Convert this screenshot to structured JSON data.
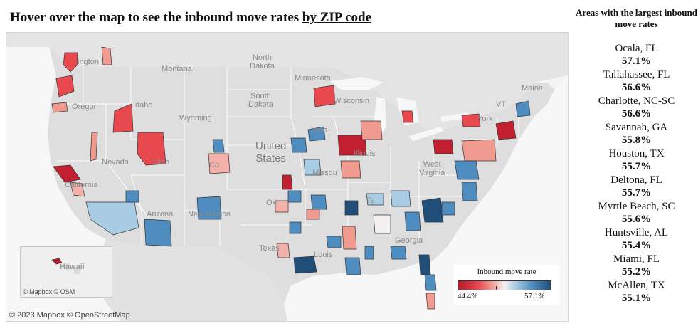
{
  "header": {
    "title_prefix": "Hover over the map to see the inbound move rates ",
    "title_link": "by ZIP code"
  },
  "map": {
    "labels": {
      "montana": "Montana",
      "north_dakota": "North\nDakota",
      "minnesota": "Minnesota",
      "wisconsin": "Wisconsin",
      "south_dakota": "South\nDakota",
      "wyoming": "Wyoming",
      "idaho": "Idaho",
      "oregon": "Oregon",
      "washington": "ington",
      "iowa": "Iowa",
      "nevada": "Nevada",
      "utah": "Utah",
      "colorado": "Co",
      "united_states": "United\nStates",
      "illinois": "Illinois",
      "missouri": "Missou",
      "california": "California",
      "arizona": "Arizona",
      "new_mexico": "New Mexico",
      "oklahoma": "Okl",
      "texas": "Texas",
      "louisiana": "Louis",
      "tennessee": "Te",
      "georgia": "Georgia",
      "west_virginia": "West\nVirginia",
      "ny": "York",
      "vt": "VT",
      "maine": "Maine",
      "hawaii": "Hawaii"
    },
    "inset_credit": "© Mapbox  © OSM",
    "attribution": "© 2023 Mapbox  © OpenStreetMap"
  },
  "legend": {
    "title": "Inbound move rate",
    "min": "44.4%",
    "max": "57.1%",
    "colors": {
      "low": "#b2182b",
      "mid": "#f3f1ef",
      "high": "#1f4e79"
    }
  },
  "sidebar": {
    "title": "Areas with the largest inbound move rates",
    "areas": [
      {
        "name": "Ocala, FL",
        "rate": "57.1%"
      },
      {
        "name": "Tallahassee, FL",
        "rate": "56.6%"
      },
      {
        "name": "Charlotte, NC-SC",
        "rate": "56.6%"
      },
      {
        "name": "Savannah, GA",
        "rate": "55.8%"
      },
      {
        "name": "Houston, TX",
        "rate": "55.7%"
      },
      {
        "name": "Deltona, FL",
        "rate": "55.7%"
      },
      {
        "name": "Myrtle Beach, SC",
        "rate": "55.6%"
      },
      {
        "name": "Huntsville, AL",
        "rate": "55.4%"
      },
      {
        "name": "Miami, FL",
        "rate": "55.2%"
      },
      {
        "name": "McAllen, TX",
        "rate": "55.1%"
      }
    ]
  }
}
